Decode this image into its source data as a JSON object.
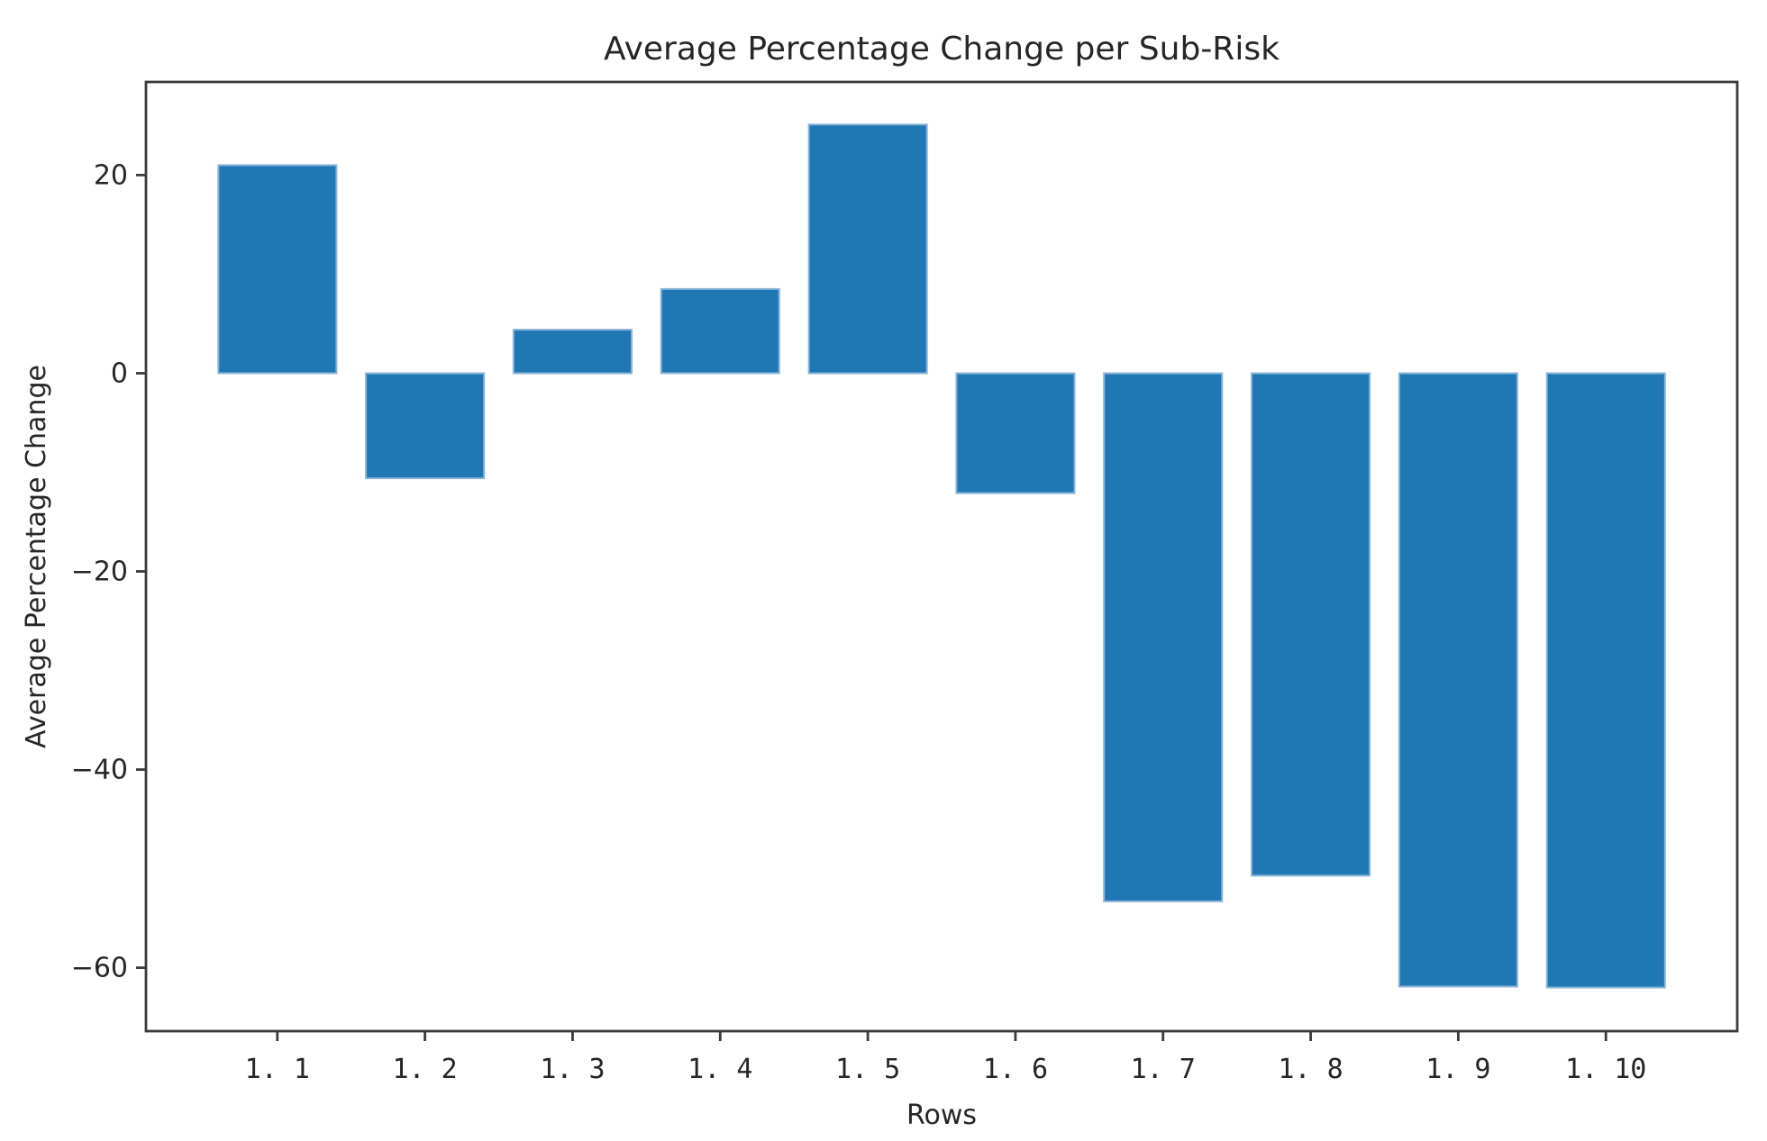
{
  "chart_data": {
    "type": "bar",
    "title": "Average Percentage Change per Sub-Risk",
    "xlabel": "Rows",
    "ylabel": "Average Percentage Change",
    "categories": [
      "1. 1",
      "1. 2",
      "1. 3",
      "1. 4",
      "1. 5",
      "1. 6",
      "1. 7",
      "1. 8",
      "1. 9",
      "1. 10"
    ],
    "values": [
      21.0,
      -10.6,
      4.4,
      8.5,
      25.1,
      -12.1,
      -53.3,
      -50.7,
      -61.9,
      -62.0
    ],
    "yticks": [
      20,
      0,
      -20,
      -40,
      -60
    ],
    "ytick_labels": [
      "20",
      "0",
      "−20",
      "−40",
      "−60"
    ],
    "ylim": [
      -66.4,
      29.4
    ],
    "xlim": [
      -0.89,
      9.89
    ],
    "bar_width": 0.8,
    "grid": false,
    "legend": null,
    "colors": {
      "bar": "#1f77b4",
      "bar_edge": "#8ab4d8",
      "axis": "#3a3a3a",
      "text": "#262626",
      "background": "#ffffff"
    }
  }
}
